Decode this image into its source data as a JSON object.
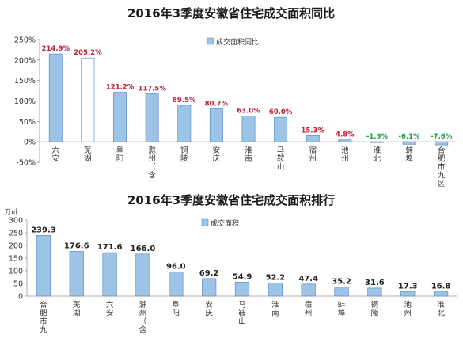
{
  "chart_data": [
    {
      "type": "bar",
      "title": "2016年3季度安徽省住宅成交面积同比",
      "legend": "成交面积同比",
      "legend_position": "top",
      "categories": [
        "六安",
        "芜湖",
        "阜阳",
        "滁州（含",
        "铜陵",
        "安庆",
        "淮南",
        "马鞍山",
        "宿州",
        "池州",
        "淮北",
        "蚌埠",
        "合肥市九区"
      ],
      "values": [
        214.9,
        205.2,
        121.2,
        117.5,
        89.5,
        80.7,
        63.0,
        60.0,
        15.3,
        4.8,
        -1.9,
        -6.1,
        -7.6
      ],
      "value_labels": [
        "214.9%",
        "205.2%",
        "121.2%",
        "117.5%",
        "89.5%",
        "80.7%",
        "63.0%",
        "60.0%",
        "15.3%",
        "4.8%",
        "-1.9%",
        "-6.1%",
        "-7.6%"
      ],
      "ylim": [
        -50,
        250
      ],
      "yticks": [
        "-50%",
        "0%",
        "50%",
        "100%",
        "150%",
        "200%",
        "250%"
      ],
      "positive_label_color": "#c0203a",
      "negative_label_color": "#1e9e4a",
      "bar_color": "#9dc3e6",
      "highlight_bar_color": "#ffffff",
      "highlight_category": "芜湖"
    },
    {
      "type": "bar",
      "title": "2016年3季度安徽省住宅成交面积排行",
      "legend": "成交面积",
      "legend_position": "top",
      "unit": "万㎡",
      "categories": [
        "合肥市九",
        "芜湖",
        "六安",
        "滁州（含",
        "阜阳",
        "安庆",
        "马鞍山",
        "淮南",
        "宿州",
        "蚌埠",
        "铜陵",
        "池州",
        "淮北"
      ],
      "values": [
        239.3,
        176.6,
        171.6,
        166.0,
        96.0,
        69.2,
        54.9,
        52.2,
        47.4,
        35.2,
        31.6,
        17.3,
        16.8
      ],
      "value_labels": [
        "239.3",
        "176.6",
        "171.6",
        "166.0",
        "96.0",
        "69.2",
        "54.9",
        "52.2",
        "47.4",
        "35.2",
        "31.6",
        "17.3",
        "16.8"
      ],
      "ylim": [
        0,
        300
      ],
      "yticks": [
        "0",
        "50",
        "100",
        "150",
        "200",
        "250",
        "300"
      ],
      "bar_color": "#9dc3e6"
    }
  ]
}
